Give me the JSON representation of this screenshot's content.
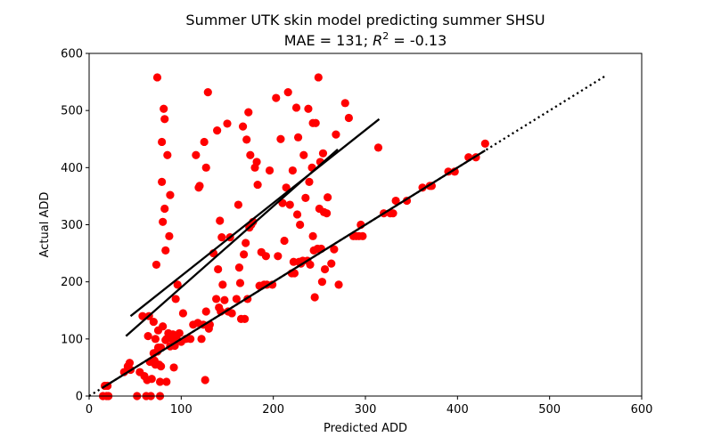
{
  "chart_data": {
    "type": "scatter",
    "title_line1": "Summer UTK skin model predicting summer SHSU",
    "title_line2_prefix": "MAE = 131; ",
    "title_line2_r2": "R",
    "title_line2_sup": "2",
    "title_line2_suffix": " = -0.13",
    "xlabel": "Predicted ADD",
    "ylabel": "Actual ADD",
    "xlim": [
      0,
      600
    ],
    "ylim": [
      0,
      600
    ],
    "xticks": [
      0,
      100,
      200,
      300,
      400,
      500,
      600
    ],
    "yticks": [
      0,
      100,
      200,
      300,
      400,
      500,
      600
    ],
    "grid": false,
    "point_color": "#ff0000",
    "line_color": "#000000",
    "reference_line": {
      "x": [
        0,
        560
      ],
      "y": [
        0,
        560
      ],
      "style": "dotted"
    },
    "fit_lines": [
      {
        "x": [
          15,
          430
        ],
        "y": [
          15,
          430
        ]
      },
      {
        "x": [
          45,
          315
        ],
        "y": [
          140,
          485
        ]
      },
      {
        "x": [
          40,
          270
        ],
        "y": [
          105,
          432
        ]
      }
    ],
    "points": [
      [
        15,
        0
      ],
      [
        17,
        18
      ],
      [
        19,
        0
      ],
      [
        20,
        18
      ],
      [
        21,
        0
      ],
      [
        38,
        42
      ],
      [
        42,
        52
      ],
      [
        44,
        58
      ],
      [
        45,
        46
      ],
      [
        52,
        0
      ],
      [
        55,
        42
      ],
      [
        58,
        140
      ],
      [
        60,
        35
      ],
      [
        62,
        0
      ],
      [
        63,
        28
      ],
      [
        64,
        105
      ],
      [
        65,
        140
      ],
      [
        66,
        60
      ],
      [
        67,
        0
      ],
      [
        68,
        30
      ],
      [
        70,
        75
      ],
      [
        70,
        130
      ],
      [
        71,
        62
      ],
      [
        72,
        55
      ],
      [
        72,
        100
      ],
      [
        73,
        230
      ],
      [
        74,
        78
      ],
      [
        74,
        558
      ],
      [
        75,
        115
      ],
      [
        75,
        85
      ],
      [
        76,
        55
      ],
      [
        77,
        25
      ],
      [
        77,
        0
      ],
      [
        78,
        85
      ],
      [
        78,
        52
      ],
      [
        79,
        445
      ],
      [
        79,
        375
      ],
      [
        80,
        305
      ],
      [
        80,
        122
      ],
      [
        81,
        503
      ],
      [
        82,
        328
      ],
      [
        82,
        485
      ],
      [
        83,
        255
      ],
      [
        83,
        98
      ],
      [
        84,
        25
      ],
      [
        84,
        100
      ],
      [
        85,
        422
      ],
      [
        86,
        110
      ],
      [
        87,
        280
      ],
      [
        88,
        352
      ],
      [
        88,
        87
      ],
      [
        90,
        100
      ],
      [
        91,
        108
      ],
      [
        92,
        50
      ],
      [
        93,
        88
      ],
      [
        94,
        170
      ],
      [
        95,
        100
      ],
      [
        96,
        195
      ],
      [
        98,
        110
      ],
      [
        100,
        95
      ],
      [
        102,
        145
      ],
      [
        105,
        100
      ],
      [
        110,
        100
      ],
      [
        113,
        125
      ],
      [
        116,
        422
      ],
      [
        118,
        128
      ],
      [
        119,
        365
      ],
      [
        120,
        368
      ],
      [
        122,
        100
      ],
      [
        124,
        125
      ],
      [
        125,
        445
      ],
      [
        126,
        28
      ],
      [
        127,
        400
      ],
      [
        127,
        148
      ],
      [
        129,
        532
      ],
      [
        130,
        118
      ],
      [
        131,
        125
      ],
      [
        135,
        250
      ],
      [
        138,
        170
      ],
      [
        139,
        465
      ],
      [
        140,
        222
      ],
      [
        141,
        155
      ],
      [
        142,
        307
      ],
      [
        143,
        148
      ],
      [
        144,
        278
      ],
      [
        145,
        195
      ],
      [
        147,
        168
      ],
      [
        150,
        477
      ],
      [
        151,
        148
      ],
      [
        153,
        278
      ],
      [
        155,
        145
      ],
      [
        160,
        170
      ],
      [
        162,
        335
      ],
      [
        163,
        225
      ],
      [
        164,
        198
      ],
      [
        165,
        135
      ],
      [
        167,
        472
      ],
      [
        168,
        248
      ],
      [
        169,
        135
      ],
      [
        170,
        268
      ],
      [
        171,
        449
      ],
      [
        172,
        170
      ],
      [
        173,
        497
      ],
      [
        174,
        295
      ],
      [
        175,
        422
      ],
      [
        176,
        300
      ],
      [
        178,
        305
      ],
      [
        180,
        400
      ],
      [
        182,
        410
      ],
      [
        183,
        370
      ],
      [
        185,
        193
      ],
      [
        187,
        252
      ],
      [
        190,
        195
      ],
      [
        192,
        245
      ],
      [
        193,
        195
      ],
      [
        196,
        395
      ],
      [
        199,
        195
      ],
      [
        203,
        522
      ],
      [
        205,
        245
      ],
      [
        208,
        450
      ],
      [
        210,
        338
      ],
      [
        212,
        272
      ],
      [
        214,
        365
      ],
      [
        216,
        532
      ],
      [
        218,
        335
      ],
      [
        220,
        215
      ],
      [
        221,
        395
      ],
      [
        222,
        235
      ],
      [
        223,
        215
      ],
      [
        225,
        505
      ],
      [
        226,
        318
      ],
      [
        227,
        453
      ],
      [
        228,
        235
      ],
      [
        229,
        300
      ],
      [
        230,
        232
      ],
      [
        232,
        237
      ],
      [
        233,
        422
      ],
      [
        235,
        347
      ],
      [
        237,
        237
      ],
      [
        238,
        503
      ],
      [
        239,
        375
      ],
      [
        240,
        230
      ],
      [
        242,
        400
      ],
      [
        243,
        280
      ],
      [
        243,
        478
      ],
      [
        244,
        255
      ],
      [
        245,
        173
      ],
      [
        246,
        478
      ],
      [
        248,
        258
      ],
      [
        249,
        558
      ],
      [
        250,
        328
      ],
      [
        251,
        410
      ],
      [
        252,
        258
      ],
      [
        253,
        200
      ],
      [
        254,
        425
      ],
      [
        255,
        322
      ],
      [
        256,
        222
      ],
      [
        258,
        320
      ],
      [
        259,
        348
      ],
      [
        263,
        232
      ],
      [
        266,
        257
      ],
      [
        268,
        458
      ],
      [
        271,
        195
      ],
      [
        278,
        513
      ],
      [
        282,
        487
      ],
      [
        287,
        280
      ],
      [
        290,
        280
      ],
      [
        293,
        280
      ],
      [
        295,
        300
      ],
      [
        297,
        280
      ],
      [
        314,
        435
      ],
      [
        320,
        320
      ],
      [
        327,
        320
      ],
      [
        330,
        320
      ],
      [
        333,
        342
      ],
      [
        345,
        342
      ],
      [
        362,
        365
      ],
      [
        370,
        368
      ],
      [
        372,
        368
      ],
      [
        390,
        393
      ],
      [
        397,
        393
      ],
      [
        412,
        418
      ],
      [
        420,
        418
      ],
      [
        430,
        442
      ]
    ]
  }
}
